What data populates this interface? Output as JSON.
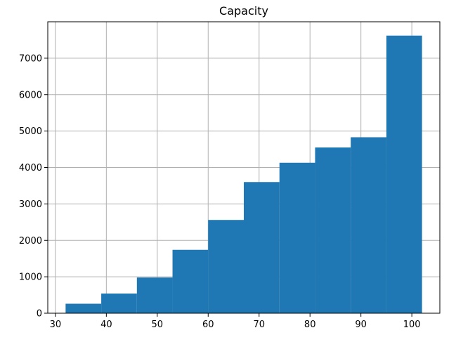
{
  "chart_data": {
    "type": "bar",
    "subtype": "histogram",
    "title": "Capacity",
    "xlabel": "",
    "ylabel": "",
    "bins": [
      {
        "x0": 32.0,
        "x1": 39.0,
        "count": 260
      },
      {
        "x0": 39.0,
        "x1": 46.0,
        "count": 540
      },
      {
        "x0": 46.0,
        "x1": 53.0,
        "count": 980
      },
      {
        "x0": 53.0,
        "x1": 60.0,
        "count": 1740
      },
      {
        "x0": 60.0,
        "x1": 67.0,
        "count": 2560
      },
      {
        "x0": 67.0,
        "x1": 74.0,
        "count": 3600
      },
      {
        "x0": 74.0,
        "x1": 81.0,
        "count": 4130
      },
      {
        "x0": 81.0,
        "x1": 88.0,
        "count": 4550
      },
      {
        "x0": 88.0,
        "x1": 95.0,
        "count": 4830
      },
      {
        "x0": 95.0,
        "x1": 102.0,
        "count": 7620
      }
    ],
    "xlim": [
      28.5,
      105.5
    ],
    "ylim": [
      0,
      8000
    ],
    "xticks": [
      30,
      40,
      50,
      60,
      70,
      80,
      90,
      100
    ],
    "yticks": [
      0,
      1000,
      2000,
      3000,
      4000,
      5000,
      6000,
      7000
    ],
    "grid": true,
    "bar_color": "#1f77b4"
  }
}
